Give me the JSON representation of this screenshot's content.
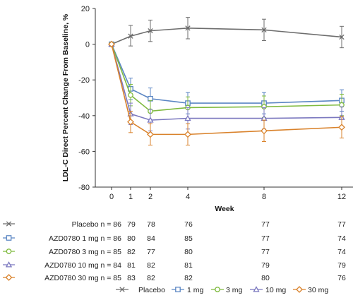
{
  "chart_data": {
    "type": "line",
    "ylabel": "LDL-C Direct Percent Change From Baseline, %",
    "xlabel": "Week",
    "x": [
      0,
      1,
      2,
      4,
      8,
      12
    ],
    "x_ticks": [
      "0",
      "1",
      "2",
      "4",
      "8",
      "12"
    ],
    "ylim": [
      -80,
      20
    ],
    "y_ticks": [
      20,
      0,
      -20,
      -40,
      -60,
      -80
    ],
    "grid": false,
    "legend_placement": "bottom",
    "series": [
      {
        "name": "Placebo",
        "legend_label": "Placebo",
        "row_label": "Placebo n = 86",
        "color": "#6d6d6d",
        "marker": "x",
        "values": [
          0,
          4.5,
          7.5,
          9,
          8,
          4
        ],
        "ci_low": [
          0,
          -1,
          1.5,
          3,
          2,
          -2
        ],
        "ci_high": [
          0,
          10.5,
          13.5,
          15,
          14,
          10
        ],
        "n_at_week": [
          "86",
          "79",
          "78",
          "76",
          "77",
          "77"
        ]
      },
      {
        "name": "AZD0780 1 mg",
        "legend_label": "1 mg",
        "row_label": "AZD0780 1 mg n = 86",
        "color": "#5b86c4",
        "marker": "square",
        "values": [
          0,
          -25,
          -30.5,
          -33,
          -33,
          -31.5
        ],
        "ci_low": [
          0,
          -31,
          -36.5,
          -39,
          -39,
          -37.5
        ],
        "ci_high": [
          0,
          -19,
          -24.5,
          -27,
          -27,
          -25.5
        ],
        "n_at_week": [
          "86",
          "80",
          "84",
          "85",
          "77",
          "74"
        ]
      },
      {
        "name": "AZD0780 3 mg",
        "legend_label": "3 mg",
        "row_label": "AZD0780 3 mg n = 85",
        "color": "#7fba3f",
        "marker": "circle",
        "values": [
          0,
          -28.5,
          -37.5,
          -35.5,
          -35,
          -34
        ],
        "ci_low": [
          0,
          -34.5,
          -43.5,
          -41.5,
          -41,
          -40
        ],
        "ci_high": [
          0,
          -22.5,
          -31.5,
          -29.5,
          -29,
          -28
        ],
        "n_at_week": [
          "85",
          "82",
          "77",
          "80",
          "77",
          "74"
        ]
      },
      {
        "name": "AZD0780 10 mg",
        "legend_label": "10 mg",
        "row_label": "AZD0780 10 mg n = 84",
        "color": "#7b78bf",
        "marker": "triangle",
        "values": [
          0,
          -39,
          -42.5,
          -41.5,
          -41.5,
          -41
        ],
        "ci_low": [
          0,
          -45,
          -48.5,
          -47.5,
          -47.5,
          -47
        ],
        "ci_high": [
          0,
          -33,
          -36.5,
          -35.5,
          -35.5,
          -35
        ],
        "n_at_week": [
          "84",
          "81",
          "82",
          "81",
          "79",
          "79"
        ]
      },
      {
        "name": "AZD0780 30 mg",
        "legend_label": "30 mg",
        "row_label": "AZD0780 30 mg n = 85",
        "color": "#d9822b",
        "marker": "diamond",
        "values": [
          0,
          -43.5,
          -50.5,
          -50.5,
          -48.5,
          -46.5
        ],
        "ci_low": [
          0,
          -49.5,
          -56.5,
          -56.5,
          -54.5,
          -52.5
        ],
        "ci_high": [
          0,
          -37.5,
          -44.5,
          -44.5,
          -42.5,
          -40.5
        ],
        "n_at_week": [
          "85",
          "83",
          "82",
          "82",
          "80",
          "76"
        ]
      }
    ]
  }
}
